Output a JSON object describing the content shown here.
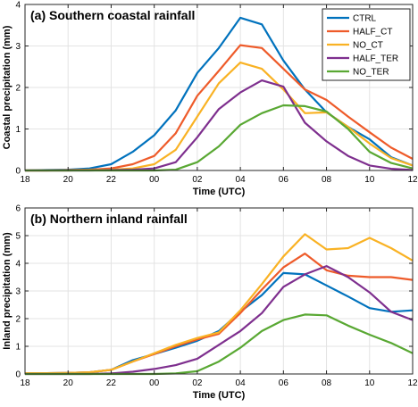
{
  "chart_data": [
    {
      "type": "line",
      "title": "(a) Southern coastal rainfall",
      "xlabel": "Time (UTC)",
      "ylabel": "Coastal precipitation (mm)",
      "x": [
        18,
        19,
        20,
        21,
        22,
        23,
        24,
        25,
        26,
        27,
        28,
        29,
        30,
        31,
        32,
        33,
        34,
        35,
        36
      ],
      "xticklabels": [
        "18",
        "20",
        "22",
        "00",
        "02",
        "04",
        "06",
        "08",
        "10",
        "12"
      ],
      "xlim": [
        18,
        36
      ],
      "ylim": [
        0,
        4
      ],
      "yticks": [
        0,
        1,
        2,
        3,
        4
      ],
      "grid": true,
      "legend": "top-right",
      "series": [
        {
          "name": "CTRL",
          "color": "#0072BD",
          "values": [
            0,
            0.01,
            0.02,
            0.05,
            0.15,
            0.45,
            0.85,
            1.45,
            2.35,
            2.95,
            3.68,
            3.52,
            2.65,
            1.95,
            1.4,
            1.05,
            0.75,
            0.32,
            0.12
          ]
        },
        {
          "name": "HALF_CT",
          "color": "#EE5B2A",
          "values": [
            0,
            0,
            0.01,
            0.02,
            0.05,
            0.15,
            0.35,
            0.9,
            1.8,
            2.4,
            3.02,
            2.95,
            2.45,
            1.95,
            1.7,
            1.3,
            0.92,
            0.55,
            0.28
          ]
        },
        {
          "name": "NO_CT",
          "color": "#F9B224",
          "values": [
            0,
            0,
            0,
            0.01,
            0.02,
            0.05,
            0.15,
            0.5,
            1.3,
            2.1,
            2.6,
            2.45,
            1.95,
            1.38,
            1.4,
            1.05,
            0.65,
            0.3,
            0.12
          ]
        },
        {
          "name": "HALF_TER",
          "color": "#7E2F8E",
          "values": [
            0,
            0,
            0,
            0,
            0.01,
            0.02,
            0.05,
            0.2,
            0.8,
            1.48,
            1.88,
            2.17,
            2.02,
            1.15,
            0.7,
            0.35,
            0.12,
            0.04,
            0.01
          ]
        },
        {
          "name": "NO_TER",
          "color": "#59A833",
          "values": [
            0,
            0,
            0,
            0,
            0,
            0,
            0,
            0.02,
            0.2,
            0.58,
            1.1,
            1.38,
            1.57,
            1.55,
            1.42,
            1.0,
            0.45,
            0.18,
            0.05
          ]
        }
      ]
    },
    {
      "type": "line",
      "title": "(b) Northern inland rainfall",
      "xlabel": "Time (UTC)",
      "ylabel": "Inland precipitation (mm)",
      "x": [
        18,
        19,
        20,
        21,
        22,
        23,
        24,
        25,
        26,
        27,
        28,
        29,
        30,
        31,
        32,
        33,
        34,
        35,
        36
      ],
      "xticklabels": [
        "18",
        "20",
        "22",
        "00",
        "02",
        "04",
        "06",
        "08",
        "10",
        "12"
      ],
      "xlim": [
        18,
        36
      ],
      "ylim": [
        0,
        6
      ],
      "yticks": [
        0,
        1,
        2,
        3,
        4,
        5,
        6
      ],
      "grid": true,
      "series": [
        {
          "name": "CTRL",
          "color": "#0072BD",
          "values": [
            0.03,
            0.03,
            0.04,
            0.06,
            0.15,
            0.5,
            0.72,
            0.95,
            1.2,
            1.55,
            2.25,
            2.85,
            3.65,
            3.6,
            3.2,
            2.8,
            2.38,
            2.25,
            2.3
          ]
        },
        {
          "name": "HALF_CT",
          "color": "#EE5B2A",
          "values": [
            0.03,
            0.03,
            0.04,
            0.06,
            0.15,
            0.45,
            0.72,
            1.0,
            1.25,
            1.45,
            2.2,
            3.05,
            3.85,
            4.35,
            3.75,
            3.55,
            3.5,
            3.5,
            3.4
          ]
        },
        {
          "name": "NO_CT",
          "color": "#F9B224",
          "values": [
            0.03,
            0.03,
            0.04,
            0.06,
            0.15,
            0.45,
            0.75,
            1.05,
            1.3,
            1.5,
            2.3,
            3.25,
            4.25,
            5.05,
            4.5,
            4.55,
            4.92,
            4.55,
            4.1
          ]
        },
        {
          "name": "HALF_TER",
          "color": "#7E2F8E",
          "values": [
            0,
            0,
            0,
            0,
            0.02,
            0.08,
            0.18,
            0.32,
            0.55,
            1.05,
            1.55,
            2.2,
            3.15,
            3.6,
            3.9,
            3.5,
            2.95,
            2.25,
            1.95
          ]
        },
        {
          "name": "NO_TER",
          "color": "#59A833",
          "values": [
            0,
            0,
            0,
            0,
            0,
            0,
            0,
            0.02,
            0.1,
            0.45,
            0.95,
            1.55,
            1.95,
            2.15,
            2.12,
            1.75,
            1.42,
            1.12,
            0.75
          ]
        }
      ]
    }
  ]
}
